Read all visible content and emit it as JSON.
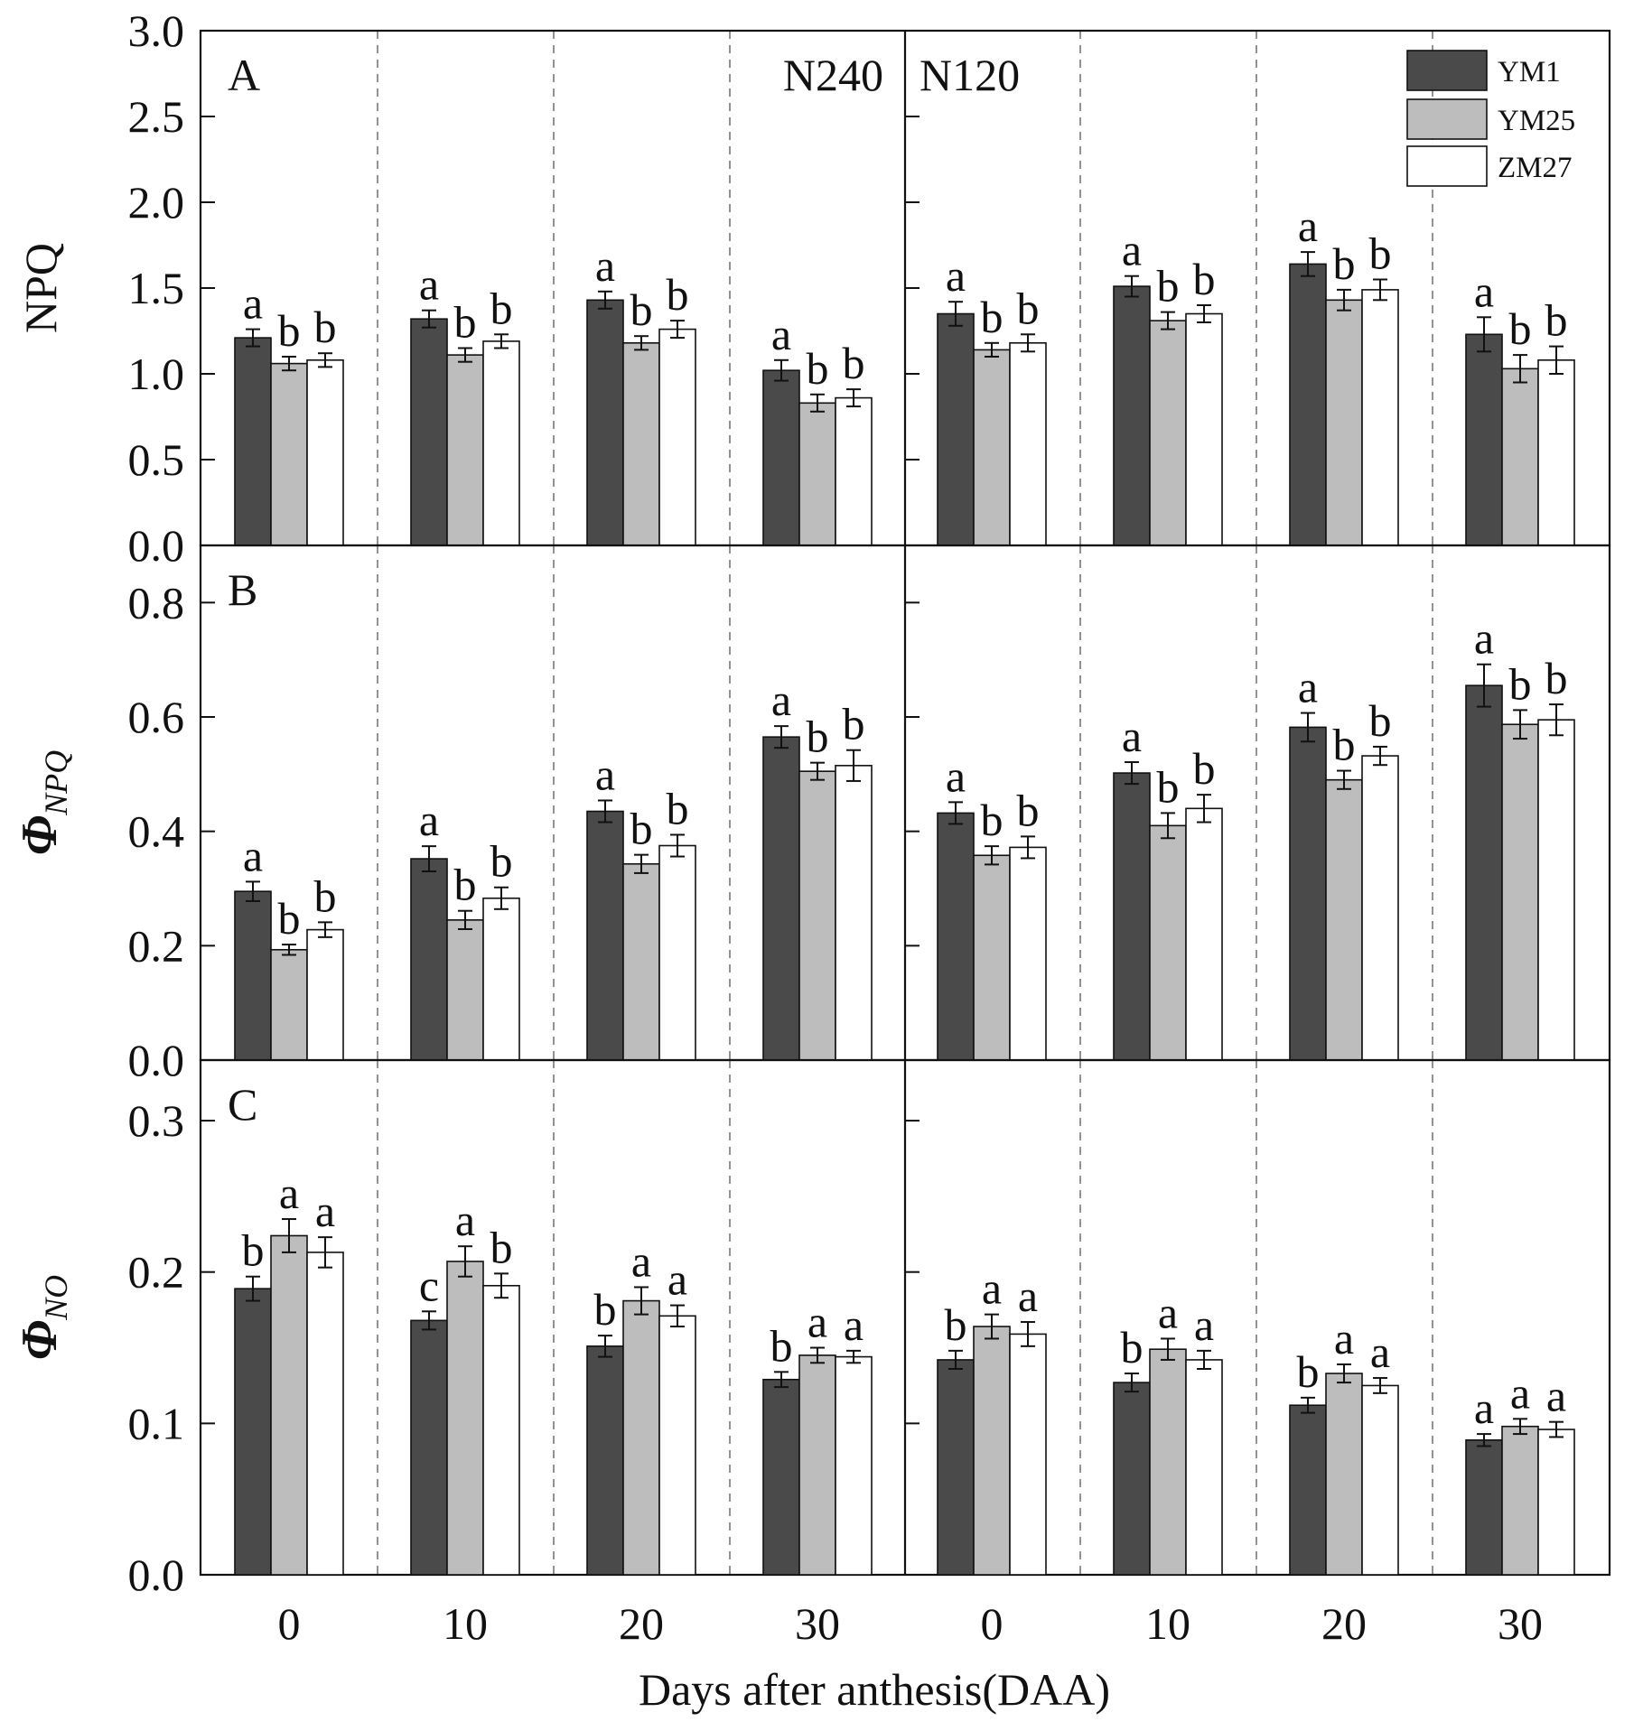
{
  "chart_data": {
    "type": "bar",
    "x_title": "Days after anthesis(DAA)",
    "categories": [
      "0",
      "10",
      "20",
      "30"
    ],
    "treatments": [
      "N240",
      "N120"
    ],
    "legend": {
      "position": "top-right",
      "entries": [
        {
          "name": "YM1",
          "color": "#4a4a4a"
        },
        {
          "name": "YM25",
          "color": "#bdbdbd"
        },
        {
          "name": "ZM27",
          "color": "#ffffff"
        }
      ]
    },
    "grid": false,
    "panels": [
      {
        "letter": "A",
        "ylabel": "NPQ",
        "ylabel_sub": "",
        "ylim": [
          0,
          3.0
        ],
        "ticks": [
          "0.0",
          "0.5",
          "1.0",
          "1.5",
          "2.0",
          "2.5",
          "3.0"
        ],
        "tick_values": [
          0,
          0.5,
          1.0,
          1.5,
          2.0,
          2.5,
          3.0
        ],
        "groups": [
          {
            "treatment": "N240",
            "day": "0",
            "values": [
              1.21,
              1.06,
              1.08
            ],
            "errors": [
              0.05,
              0.04,
              0.04
            ],
            "letters": [
              "a",
              "b",
              "b"
            ]
          },
          {
            "treatment": "N240",
            "day": "10",
            "values": [
              1.32,
              1.11,
              1.19
            ],
            "errors": [
              0.05,
              0.04,
              0.04
            ],
            "letters": [
              "a",
              "b",
              "b"
            ]
          },
          {
            "treatment": "N240",
            "day": "20",
            "values": [
              1.43,
              1.18,
              1.26
            ],
            "errors": [
              0.05,
              0.04,
              0.05
            ],
            "letters": [
              "a",
              "b",
              "b"
            ]
          },
          {
            "treatment": "N240",
            "day": "30",
            "values": [
              1.02,
              0.83,
              0.86
            ],
            "errors": [
              0.06,
              0.05,
              0.05
            ],
            "letters": [
              "a",
              "b",
              "b"
            ]
          },
          {
            "treatment": "N120",
            "day": "0",
            "values": [
              1.35,
              1.14,
              1.18
            ],
            "errors": [
              0.07,
              0.04,
              0.05
            ],
            "letters": [
              "a",
              "b",
              "b"
            ]
          },
          {
            "treatment": "N120",
            "day": "10",
            "values": [
              1.51,
              1.31,
              1.35
            ],
            "errors": [
              0.06,
              0.05,
              0.05
            ],
            "letters": [
              "a",
              "b",
              "b"
            ]
          },
          {
            "treatment": "N120",
            "day": "20",
            "values": [
              1.64,
              1.43,
              1.49
            ],
            "errors": [
              0.07,
              0.06,
              0.06
            ],
            "letters": [
              "a",
              "b",
              "b"
            ]
          },
          {
            "treatment": "N120",
            "day": "30",
            "values": [
              1.23,
              1.03,
              1.08
            ],
            "errors": [
              0.1,
              0.08,
              0.08
            ],
            "letters": [
              "a",
              "b",
              "b"
            ]
          }
        ]
      },
      {
        "letter": "B",
        "ylabel": "Φ",
        "ylabel_sub": "NPQ",
        "ylim": [
          0,
          0.9
        ],
        "ticks": [
          "0.0",
          "0.2",
          "0.4",
          "0.6",
          "0.8"
        ],
        "tick_values": [
          0,
          0.2,
          0.4,
          0.6,
          0.8
        ],
        "groups": [
          {
            "treatment": "N240",
            "day": "0",
            "values": [
              0.295,
              0.193,
              0.228
            ],
            "errors": [
              0.017,
              0.009,
              0.013
            ],
            "letters": [
              "a",
              "b",
              "b"
            ]
          },
          {
            "treatment": "N240",
            "day": "10",
            "values": [
              0.352,
              0.245,
              0.283
            ],
            "errors": [
              0.022,
              0.016,
              0.019
            ],
            "letters": [
              "a",
              "b",
              "b"
            ]
          },
          {
            "treatment": "N240",
            "day": "20",
            "values": [
              0.435,
              0.343,
              0.375
            ],
            "errors": [
              0.019,
              0.016,
              0.019
            ],
            "letters": [
              "a",
              "b",
              "b"
            ]
          },
          {
            "treatment": "N240",
            "day": "30",
            "values": [
              0.565,
              0.505,
              0.515
            ],
            "errors": [
              0.019,
              0.015,
              0.027
            ],
            "letters": [
              "a",
              "b",
              "b"
            ]
          },
          {
            "treatment": "N120",
            "day": "0",
            "values": [
              0.432,
              0.358,
              0.372
            ],
            "errors": [
              0.019,
              0.016,
              0.019
            ],
            "letters": [
              "a",
              "b",
              "b"
            ]
          },
          {
            "treatment": "N120",
            "day": "10",
            "values": [
              0.502,
              0.41,
              0.44
            ],
            "errors": [
              0.019,
              0.022,
              0.024
            ],
            "letters": [
              "a",
              "b",
              "b"
            ]
          },
          {
            "treatment": "N120",
            "day": "20",
            "values": [
              0.582,
              0.49,
              0.532
            ],
            "errors": [
              0.025,
              0.016,
              0.016
            ],
            "letters": [
              "a",
              "b",
              "b"
            ]
          },
          {
            "treatment": "N120",
            "day": "30",
            "values": [
              0.655,
              0.587,
              0.595
            ],
            "errors": [
              0.037,
              0.025,
              0.027
            ],
            "letters": [
              "a",
              "b",
              "b"
            ]
          }
        ]
      },
      {
        "letter": "C",
        "ylabel": "Φ",
        "ylabel_sub": "NO",
        "ylim": [
          0,
          0.34
        ],
        "ticks": [
          "0.0",
          "0.1",
          "0.2",
          "0.3"
        ],
        "tick_values": [
          0,
          0.1,
          0.2,
          0.3
        ],
        "groups": [
          {
            "treatment": "N240",
            "day": "0",
            "values": [
              0.189,
              0.224,
              0.213
            ],
            "errors": [
              0.008,
              0.011,
              0.01
            ],
            "letters": [
              "b",
              "a",
              "a"
            ]
          },
          {
            "treatment": "N240",
            "day": "10",
            "values": [
              0.168,
              0.207,
              0.191
            ],
            "errors": [
              0.006,
              0.01,
              0.008
            ],
            "letters": [
              "c",
              "a",
              "b"
            ]
          },
          {
            "treatment": "N240",
            "day": "20",
            "values": [
              0.151,
              0.181,
              0.171
            ],
            "errors": [
              0.007,
              0.009,
              0.007
            ],
            "letters": [
              "b",
              "a",
              "a"
            ]
          },
          {
            "treatment": "N240",
            "day": "30",
            "values": [
              0.129,
              0.145,
              0.144
            ],
            "errors": [
              0.005,
              0.005,
              0.004
            ],
            "letters": [
              "b",
              "a",
              "a"
            ]
          },
          {
            "treatment": "N120",
            "day": "0",
            "values": [
              0.142,
              0.164,
              0.159
            ],
            "errors": [
              0.006,
              0.008,
              0.008
            ],
            "letters": [
              "b",
              "a",
              "a"
            ]
          },
          {
            "treatment": "N120",
            "day": "10",
            "values": [
              0.127,
              0.149,
              0.142
            ],
            "errors": [
              0.006,
              0.007,
              0.006
            ],
            "letters": [
              "b",
              "a",
              "a"
            ]
          },
          {
            "treatment": "N120",
            "day": "20",
            "values": [
              0.112,
              0.133,
              0.125
            ],
            "errors": [
              0.005,
              0.006,
              0.005
            ],
            "letters": [
              "b",
              "a",
              "a"
            ]
          },
          {
            "treatment": "N120",
            "day": "30",
            "values": [
              0.089,
              0.098,
              0.096
            ],
            "errors": [
              0.004,
              0.005,
              0.005
            ],
            "letters": [
              "a",
              "a",
              "a"
            ]
          }
        ]
      }
    ]
  }
}
